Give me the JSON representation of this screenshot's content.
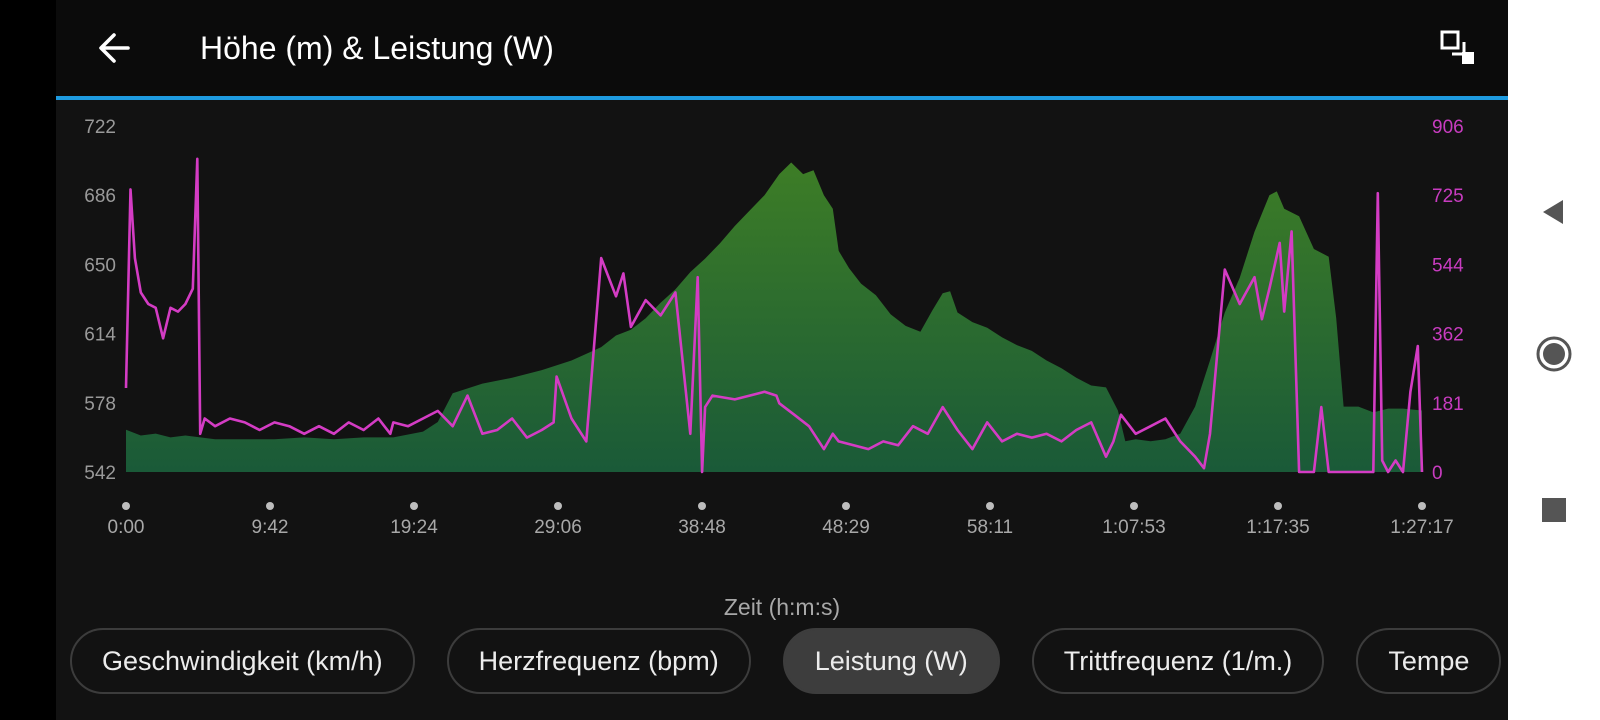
{
  "header": {
    "title": "Höhe (m) & Leistung (W)",
    "back_icon": "arrow-left-icon",
    "expand_icon": "expand-icon"
  },
  "colors": {
    "accent": "#1e9be0",
    "elevation_fill_top": "#3d7d26",
    "elevation_fill_bottom": "#1a5a38",
    "power": "#d43cc4",
    "power_axis": "#c83cc0",
    "left_axis": "#9a9a9a"
  },
  "chart_data": {
    "type": "area",
    "xlabel": "Zeit (h:m:s)",
    "x_ticks": [
      "0:00",
      "9:42",
      "19:24",
      "29:06",
      "38:48",
      "48:29",
      "58:11",
      "1:07:53",
      "1:17:35",
      "1:27:17"
    ],
    "x_unit": "minutes",
    "x_range": [
      0,
      87.28
    ],
    "y_left": {
      "label": "Höhe (m)",
      "ticks": [
        "722",
        "686",
        "650",
        "614",
        "578",
        "542"
      ],
      "range": [
        542,
        722
      ]
    },
    "y_right": {
      "label": "Leistung (W)",
      "ticks": [
        "906",
        "725",
        "544",
        "362",
        "181",
        "0"
      ],
      "range": [
        0,
        906
      ]
    },
    "series": [
      {
        "name": "Höhe (m)",
        "type": "area",
        "x": [
          0,
          1,
          2,
          3,
          4,
          5,
          6,
          8,
          10,
          12,
          14,
          16,
          18,
          20,
          21,
          22,
          24,
          26,
          28,
          30,
          32,
          33,
          34,
          35,
          36,
          37,
          38,
          39,
          40,
          41,
          42,
          43,
          44,
          44.8,
          45.6,
          46.3,
          47,
          47.6,
          48,
          48.7,
          49.5,
          50.5,
          51.5,
          52.5,
          53.5,
          54.3,
          55,
          55.5,
          56,
          57,
          58,
          59,
          60,
          61,
          62,
          63,
          64,
          65,
          66,
          66.8,
          67.3,
          68,
          69,
          70,
          71,
          72,
          73,
          74,
          75,
          76,
          77,
          77.5,
          78,
          79,
          80,
          81,
          81.5,
          82,
          83,
          84,
          85,
          86,
          87.28
        ],
        "y": [
          564,
          561,
          562,
          560,
          561,
          560,
          559,
          559,
          559,
          560,
          559,
          560,
          560,
          563,
          568,
          583,
          588,
          591,
          595,
          600,
          607,
          613,
          616,
          622,
          630,
          637,
          646,
          653,
          661,
          670,
          678,
          686,
          697,
          703,
          697,
          699,
          686,
          679,
          657,
          648,
          640,
          634,
          624,
          618,
          615,
          626,
          635,
          636,
          625,
          620,
          617,
          612,
          608,
          605,
          600,
          596,
          591,
          587,
          586,
          574,
          558,
          559,
          558,
          559,
          562,
          576,
          600,
          625,
          643,
          667,
          686,
          688,
          679,
          675,
          658,
          654,
          622,
          576,
          576,
          573,
          575,
          575,
          574
        ]
      },
      {
        "name": "Leistung (W)",
        "type": "line",
        "x": [
          0,
          0.3,
          0.6,
          1,
          1.5,
          2,
          2.5,
          3,
          3.5,
          4,
          4.5,
          4.8,
          5,
          5.3,
          6,
          7,
          8,
          9,
          10,
          11,
          12,
          13,
          14,
          15,
          16,
          17,
          17.8,
          18,
          19,
          20,
          21,
          22,
          23,
          24,
          25,
          26,
          27,
          28,
          28.8,
          29,
          30,
          31,
          32,
          33,
          33.5,
          34,
          35,
          36,
          37,
          38,
          38.5,
          38.8,
          39,
          39.5,
          41,
          42,
          43,
          43.8,
          44,
          45,
          46,
          47,
          47.6,
          48,
          49,
          50,
          51,
          52,
          53,
          54,
          55,
          56,
          57,
          58,
          59,
          60,
          61,
          62,
          63,
          64,
          65,
          66,
          66.5,
          67,
          68,
          69,
          70,
          71,
          72,
          72.6,
          73,
          74,
          75,
          76,
          76.5,
          77,
          77.7,
          78,
          78.5,
          79,
          80,
          80.5,
          81,
          82,
          83,
          84,
          84.3,
          84.6,
          85,
          85.5,
          86,
          86.5,
          87,
          87.28
        ],
        "y": [
          220,
          740,
          560,
          470,
          440,
          430,
          350,
          430,
          420,
          440,
          480,
          820,
          100,
          140,
          120,
          140,
          130,
          110,
          130,
          120,
          100,
          120,
          100,
          130,
          110,
          140,
          100,
          130,
          120,
          140,
          160,
          120,
          200,
          100,
          110,
          140,
          90,
          110,
          130,
          250,
          140,
          80,
          560,
          460,
          520,
          380,
          450,
          410,
          470,
          100,
          510,
          0,
          170,
          200,
          190,
          200,
          210,
          200,
          180,
          150,
          120,
          60,
          100,
          80,
          70,
          60,
          80,
          70,
          120,
          100,
          170,
          110,
          60,
          130,
          80,
          100,
          90,
          100,
          80,
          110,
          130,
          40,
          80,
          150,
          100,
          120,
          140,
          80,
          40,
          10,
          100,
          530,
          440,
          510,
          400,
          480,
          600,
          420,
          630,
          0,
          0,
          170,
          0,
          0,
          0,
          0,
          730,
          30,
          0,
          30,
          0,
          210,
          330,
          0
        ]
      }
    ]
  },
  "tabs": [
    {
      "label": "Geschwindigkeit (km/h)",
      "active": false
    },
    {
      "label": "Herzfrequenz (bpm)",
      "active": false
    },
    {
      "label": "Leistung (W)",
      "active": true
    },
    {
      "label": "Trittfrequenz (1/m.)",
      "active": false
    },
    {
      "label": "Tempe",
      "active": false
    }
  ],
  "navbar": {
    "back_icon": "triangle-back-icon",
    "home_icon": "circle-home-icon",
    "recents_icon": "square-recents-icon"
  }
}
